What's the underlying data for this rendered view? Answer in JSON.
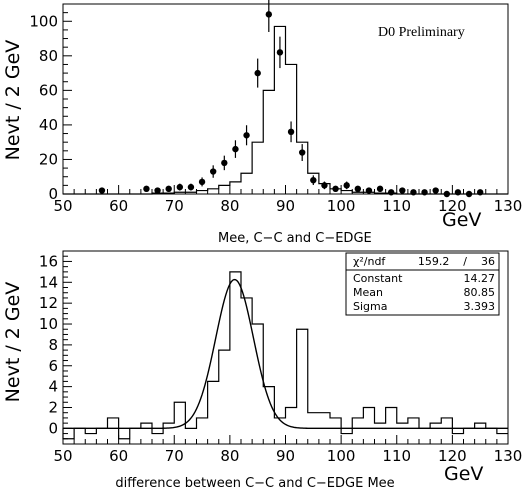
{
  "chart_data": [
    {
      "type": "histogram",
      "ylabel": "Nevt / 2 GeV",
      "xunit": "GeV",
      "xlabel": "Mee, C−C and C−EDGE",
      "annotation": "D0 Preliminary",
      "xlim": [
        50,
        130
      ],
      "ylim": [
        0,
        110
      ],
      "xticks": [
        50,
        60,
        70,
        80,
        90,
        100,
        110,
        120,
        130
      ],
      "yticks": [
        0,
        20,
        40,
        60,
        80,
        100
      ],
      "bin_width": 2,
      "series": [
        {
          "kind": "histogram",
          "bin_edges": [
            50,
            52,
            54,
            56,
            58,
            60,
            62,
            64,
            66,
            68,
            70,
            72,
            74,
            76,
            78,
            80,
            82,
            84,
            86,
            88,
            90,
            92,
            94,
            96,
            98,
            100,
            102,
            104,
            106,
            108,
            110,
            112,
            114,
            116,
            118,
            120,
            122,
            124,
            126,
            128,
            130
          ],
          "values": [
            0,
            0,
            0,
            0,
            0,
            0,
            0,
            0,
            0.5,
            0.5,
            1,
            1,
            2,
            3,
            5,
            7,
            12,
            30,
            60,
            97,
            75,
            30,
            12,
            6,
            3,
            2,
            1,
            1,
            0.5,
            0.5,
            0,
            0,
            0,
            0,
            0,
            0,
            0,
            0,
            0,
            0
          ]
        },
        {
          "kind": "points",
          "x": [
            57,
            65,
            67,
            69,
            71,
            73,
            75,
            77,
            79,
            81,
            83,
            85,
            87,
            89,
            91,
            93,
            95,
            97,
            99,
            101,
            103,
            105,
            107,
            109,
            111,
            113,
            115,
            117,
            119,
            121,
            123,
            125
          ],
          "y": [
            2,
            3,
            2,
            3,
            4,
            4,
            7,
            13,
            18,
            26,
            34,
            70,
            104,
            82,
            36,
            24,
            8,
            5,
            3,
            5,
            3,
            2,
            3,
            1,
            2,
            1,
            1,
            2,
            0,
            1,
            0,
            1
          ],
          "err": [
            1.4,
            1.7,
            1.4,
            1.7,
            2,
            2,
            2.6,
            3.6,
            4.2,
            5.1,
            5.8,
            8.4,
            10.2,
            9.1,
            6,
            4.9,
            2.8,
            2.2,
            1.7,
            2.2,
            1.7,
            1.4,
            1.7,
            1,
            1.4,
            1,
            1,
            1.4,
            0,
            1,
            0,
            1
          ]
        }
      ]
    },
    {
      "type": "histogram",
      "ylabel": "Nevt / 2 GeV",
      "xunit": "GeV",
      "xlabel": "difference between C−C and C−EDGE Mee",
      "xlim": [
        50,
        130
      ],
      "ylim": [
        -1.5,
        17
      ],
      "xticks": [
        50,
        60,
        70,
        80,
        90,
        100,
        110,
        120,
        130
      ],
      "yticks": [
        0,
        2,
        4,
        6,
        8,
        10,
        12,
        14,
        16
      ],
      "bin_width": 2,
      "series": [
        {
          "kind": "histogram",
          "bin_edges": [
            50,
            52,
            54,
            56,
            58,
            60,
            62,
            64,
            66,
            68,
            70,
            72,
            74,
            76,
            78,
            80,
            82,
            84,
            86,
            88,
            90,
            92,
            94,
            96,
            98,
            100,
            102,
            104,
            106,
            108,
            110,
            112,
            114,
            116,
            118,
            120,
            122,
            124,
            126,
            128,
            130
          ],
          "values": [
            -1,
            0,
            -0.5,
            0,
            1,
            -1,
            0,
            0.5,
            -0.5,
            0.5,
            2.5,
            0,
            1,
            4.5,
            7.5,
            15,
            12.5,
            10,
            4,
            1,
            2,
            9.5,
            1.5,
            1.5,
            1,
            -0.5,
            1,
            2,
            0.5,
            2,
            0.5,
            1,
            0,
            0.5,
            1,
            -0.5,
            0,
            0.5,
            0,
            -0.5
          ]
        },
        {
          "kind": "fit",
          "function": "gaussian",
          "constant": 14.27,
          "mean": 80.85,
          "sigma": 3.393
        }
      ],
      "stats_box": {
        "rows": [
          {
            "label": "χ²/ndf",
            "value": "159.2    /    36"
          },
          {
            "label": "Constant",
            "value": "14.27"
          },
          {
            "label": "Mean",
            "value": "80.85"
          },
          {
            "label": "Sigma",
            "value": "3.393"
          }
        ]
      }
    }
  ]
}
